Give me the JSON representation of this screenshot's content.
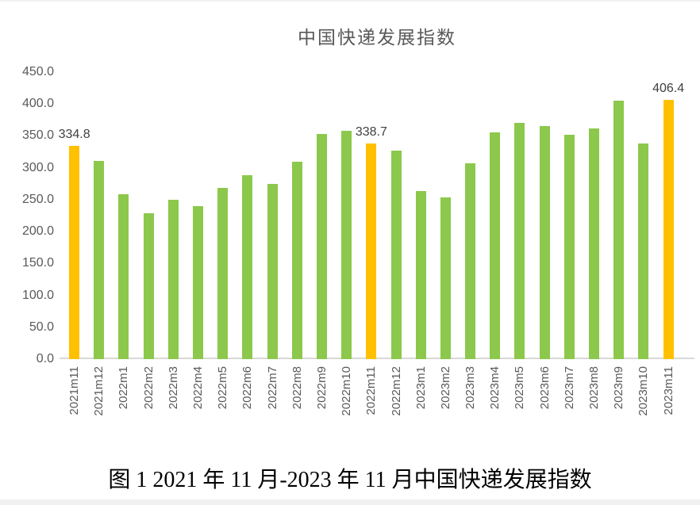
{
  "title": "中国快递发展指数",
  "caption": "图 1  2021 年 11 月-2023 年 11 月中国快递发展指数",
  "colors": {
    "bar_default": "#8cc84b",
    "bar_highlight": "#ffc000",
    "axis_text": "#595959",
    "data_label": "#404040",
    "axis_line": "#d9d9d9"
  },
  "chart_data": {
    "type": "bar",
    "title": "中国快递发展指数",
    "xlabel": "",
    "ylabel": "",
    "ylim": [
      0,
      450
    ],
    "ytick_step": 50,
    "yticks": [
      "450.0",
      "400.0",
      "350.0",
      "300.0",
      "250.0",
      "200.0",
      "150.0",
      "100.0",
      "50.0",
      "0.0"
    ],
    "grid": false,
    "legend": false,
    "categories": [
      "2021m11",
      "2021m12",
      "2022m1",
      "2022m2",
      "2022m3",
      "2022m4",
      "2022m5",
      "2022m6",
      "2022m7",
      "2022m8",
      "2022m9",
      "2022m10",
      "2022m11",
      "2022m12",
      "2023m1",
      "2023m2",
      "2023m3",
      "2023m4",
      "2023m5",
      "2023m6",
      "2023m7",
      "2023m8",
      "2023m9",
      "2023m10",
      "2023m11"
    ],
    "values": [
      334.8,
      311.4,
      259.0,
      228.5,
      250.0,
      240.0,
      268.0,
      288.5,
      275.0,
      310.0,
      352.5,
      357.5,
      338.7,
      327.5,
      264.0,
      254.0,
      307.0,
      356.0,
      371.0,
      366.0,
      351.5,
      361.5,
      405.5,
      338.5,
      406.4
    ],
    "highlighted_indices": [
      0,
      12,
      24
    ],
    "data_labels": {
      "0": "334.8",
      "12": "338.7",
      "24": "406.4"
    }
  }
}
